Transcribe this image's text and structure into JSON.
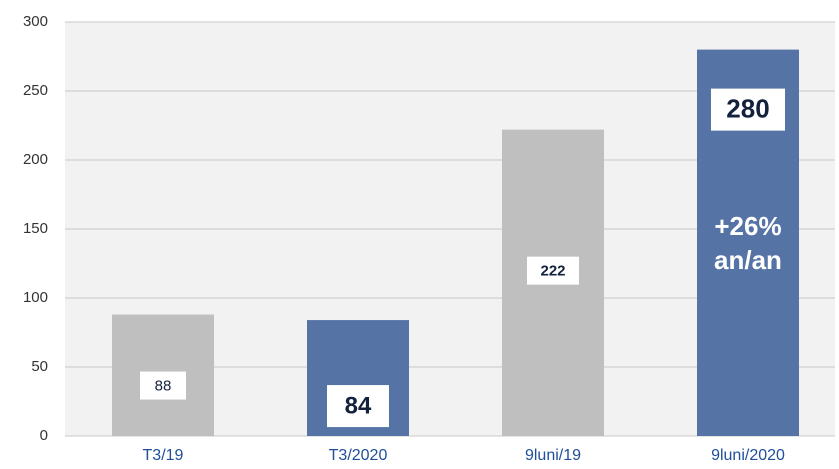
{
  "chart_data": {
    "type": "bar",
    "categories": [
      "T3/19",
      "T3/2020",
      "9luni/19",
      "9luni/2020"
    ],
    "values": [
      88,
      84,
      222,
      280
    ],
    "colors": [
      "#bfbfbf",
      "#5673a6",
      "#bfbfbf",
      "#5673a6"
    ],
    "ylim": [
      0,
      300
    ],
    "yticks": [
      0,
      50,
      100,
      150,
      200,
      250,
      300
    ],
    "grid": true,
    "annotation": [
      "+26%",
      "an/an"
    ]
  }
}
